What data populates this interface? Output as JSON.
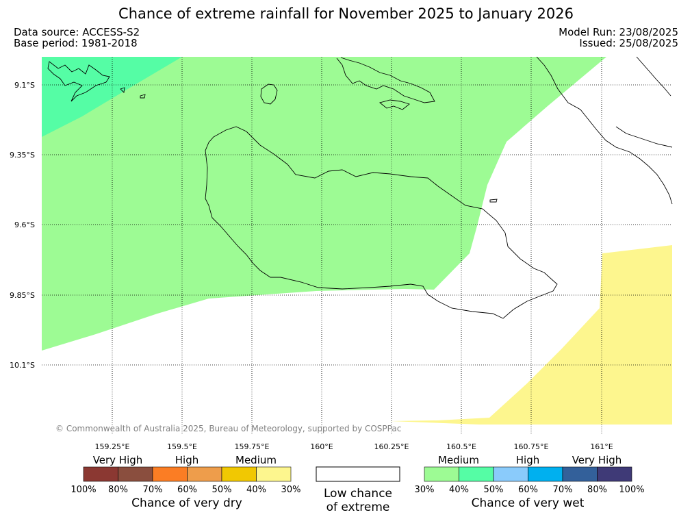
{
  "header": {
    "title": "Chance of extreme rainfall for November 2025 to January 2026",
    "data_source": "Data source: ACCESS-S2",
    "base_period": "Base period: 1981-2018",
    "model_run": "Model Run: 23/08/2025",
    "issued": "Issued: 25/08/2025"
  },
  "map": {
    "lat_ticks": [
      "9.1°S",
      "9.35°S",
      "9.6°S",
      "9.85°S",
      "10.1°S"
    ],
    "lon_ticks": [
      "159.25°E",
      "159.5°E",
      "159.75°E",
      "160°E",
      "160.25°E",
      "160.5°E",
      "160.75°E",
      "161°E"
    ],
    "copyright": "© Commonwealth of Australia 2025, Bureau of Meteorology, supported by COSPPac",
    "region_colors": {
      "wet_30_40": "#9dfb94",
      "wet_40_50": "#55fda5",
      "dry_30_40": "#fdf68e"
    }
  },
  "legend": {
    "dry": {
      "title": "Chance of very dry",
      "categories": [
        "Very High",
        "High",
        "Medium"
      ],
      "ticks": [
        "100%",
        "80%",
        "70%",
        "60%",
        "50%",
        "40%",
        "30%"
      ],
      "colors": [
        "#8b3832",
        "#8a4e3e",
        "#fb7d24",
        "#ee9d4b",
        "#f1c802",
        "#fdf68e"
      ]
    },
    "low": {
      "line1": "Low chance",
      "line2": "of extreme"
    },
    "wet": {
      "title": "Chance of very wet",
      "categories": [
        "Medium",
        "High",
        "Very High"
      ],
      "ticks": [
        "30%",
        "40%",
        "50%",
        "60%",
        "70%",
        "80%",
        "100%"
      ],
      "colors": [
        "#9dfb94",
        "#55fda5",
        "#8acbfb",
        "#00b0ef",
        "#33609a",
        "#3f3a77"
      ]
    }
  }
}
